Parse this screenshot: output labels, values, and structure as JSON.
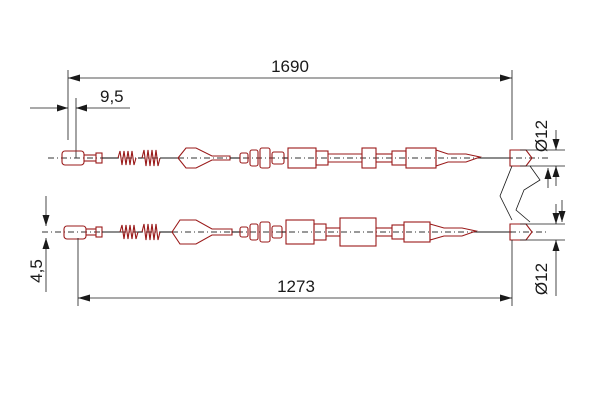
{
  "diagram": {
    "dimensions": {
      "upper_length": "1690",
      "lower_length": "1273",
      "upper_offset": "9,5",
      "lower_offset": "4,5",
      "upper_diameter": "Ø12",
      "lower_diameter": "Ø12"
    }
  },
  "colors": {
    "ink": "#1a1a1a",
    "part_outline": "#9a1a1a"
  }
}
